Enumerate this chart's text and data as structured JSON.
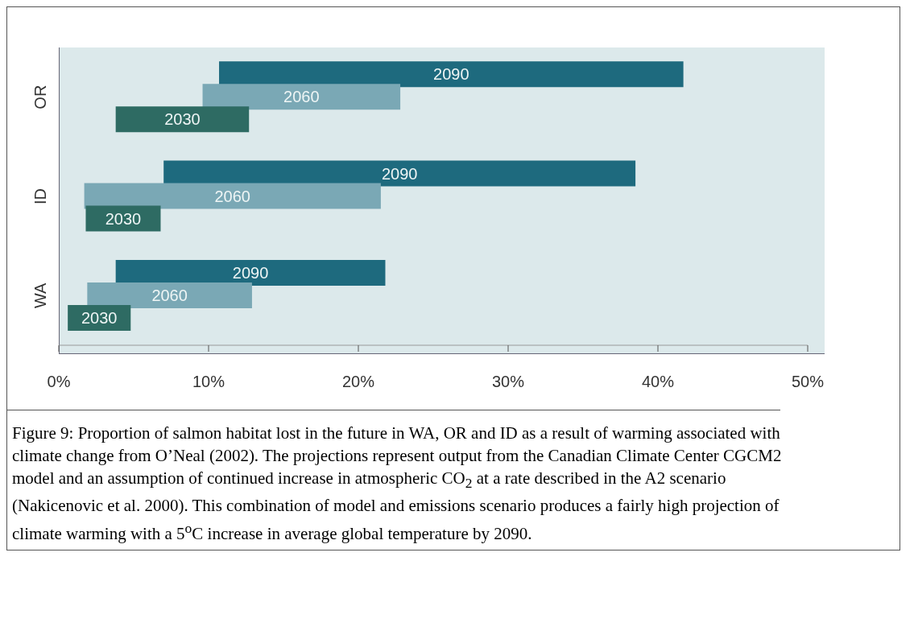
{
  "chart_data": {
    "type": "bar",
    "orientation": "horizontal",
    "categories": [
      "OR",
      "ID",
      "WA"
    ],
    "series": [
      {
        "name": "2090",
        "color": "#1e6a7e",
        "base": [
          10.7,
          7.0,
          3.8
        ],
        "values": [
          31,
          31.5,
          18
        ]
      },
      {
        "name": "2060",
        "color": "#7aa8b5",
        "base": [
          9.6,
          1.7,
          1.9
        ],
        "values": [
          13.2,
          19.8,
          11
        ]
      },
      {
        "name": "2030",
        "color": "#2e6b63",
        "base": [
          3.8,
          1.8,
          0.6
        ],
        "values": [
          8.9,
          5,
          4.2
        ]
      }
    ],
    "xlim": [
      0,
      50
    ],
    "xticks": [
      {
        "value": 0,
        "label": "0%"
      },
      {
        "value": 10,
        "label": "10%"
      },
      {
        "value": 20,
        "label": "20%"
      },
      {
        "value": 30,
        "label": "30%"
      },
      {
        "value": 40,
        "label": "40%"
      },
      {
        "value": 50,
        "label": "50%"
      }
    ],
    "grid": false,
    "legend": false,
    "annotations": [
      "Figure 9:   Proportion of salmon habitat lost in the future in WA, OR and ID as a result of warming associated with climate change from O’Neal (2002).  The projections represent output from the Canadian Climate Center CGCM2 model and an assumption of continued increase in atmospheric CO$_{2}$ at a rate described in the A2 scenario (Nakicenovic et al. 2000).  This combination of model and emissions scenario produces a fairly high projection of climate warming with a 5$^{o}$C increase in average global temperature by 2090."
    ]
  }
}
